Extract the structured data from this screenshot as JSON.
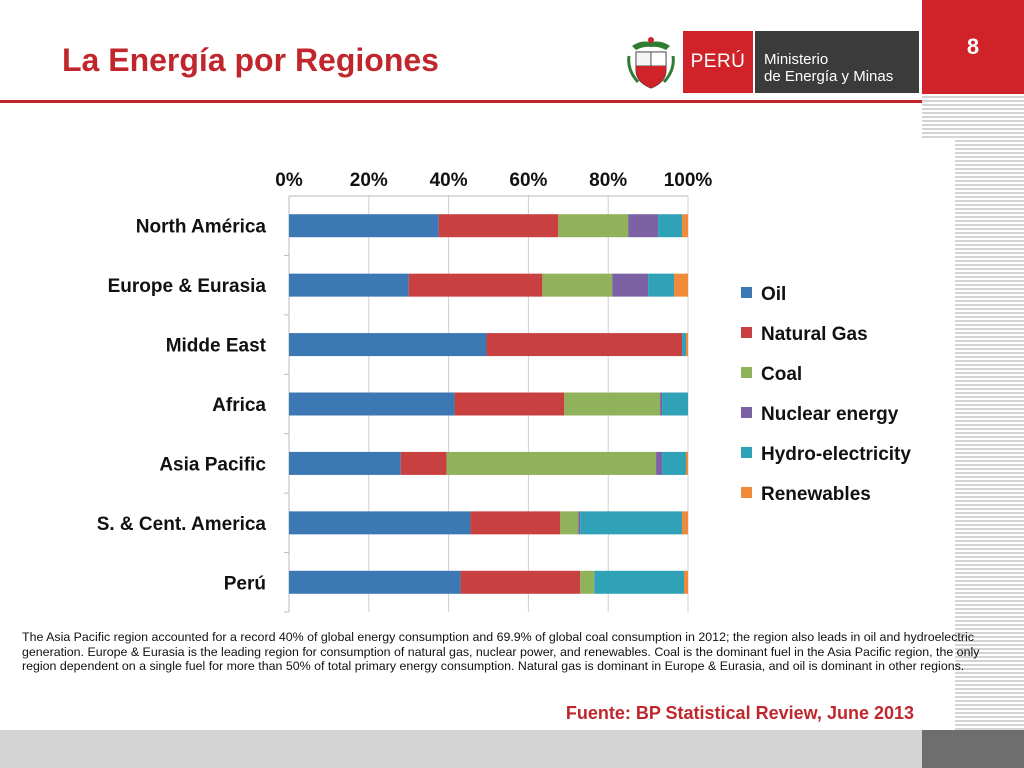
{
  "slide": {
    "title": "La Energía por Regiones",
    "page_number": "8",
    "logo_peru": "PERÚ",
    "logo_ministry_line1": "Ministerio",
    "logo_ministry_line2": "de Energía y Minas",
    "caption": "The Asia Pacific region accounted for a record 40% of global energy consumption and 69.9% of global coal consumption in 2012; the region also leads in oil and hydroelectric generation. Europe & Eurasia is the leading region for consumption of natural gas, nuclear power, and renewables. Coal is the dominant fuel in the Asia Pacific region, the only region dependent on a single fuel for more than 50% of total primary energy consumption. Natural gas is dominant in Europe & Eurasia, and oil is dominant in other regions.",
    "source": "Fuente: BP Statistical Review, June 2013"
  },
  "colors": {
    "accent": "#c0272d",
    "logo_red": "#cf2229",
    "logo_dark": "#3b3b3b"
  },
  "chart_data": {
    "type": "bar",
    "orientation": "horizontal",
    "stacked": true,
    "normalized": true,
    "categories": [
      "North Américа",
      "Europe & Eurasia",
      "Midde East",
      "Africa",
      "Asia Pacific",
      "S. & Cent. America",
      "Perú"
    ],
    "series": [
      {
        "name": "Oil",
        "color": "#3c78b4",
        "values": [
          37.5,
          30,
          49.5,
          41.5,
          28,
          45.5,
          43
        ]
      },
      {
        "name": "Natural Gas",
        "color": "#c94040",
        "values": [
          30,
          33.5,
          49,
          27.5,
          11.5,
          22.5,
          30
        ]
      },
      {
        "name": "Coal",
        "color": "#90b25a",
        "values": [
          17.5,
          17.5,
          0,
          24,
          52.5,
          4.5,
          3.5
        ]
      },
      {
        "name": "Nuclear energy",
        "color": "#7c62a5",
        "values": [
          7.5,
          9,
          0,
          0.5,
          1.5,
          0.5,
          0
        ]
      },
      {
        "name": "Hydro-electricity",
        "color": "#2fa2b8",
        "values": [
          6,
          6.5,
          1,
          6.5,
          6,
          25.5,
          22.5
        ]
      },
      {
        "name": "Renewables",
        "color": "#ef8a3a",
        "values": [
          1.5,
          3.5,
          0.5,
          0,
          0.5,
          1.5,
          1
        ]
      }
    ],
    "xticks": [
      "0%",
      "20%",
      "40%",
      "60%",
      "80%",
      "100%"
    ],
    "xlim": [
      0,
      100
    ],
    "axis_position": "top",
    "grid": true,
    "legend": "right"
  }
}
